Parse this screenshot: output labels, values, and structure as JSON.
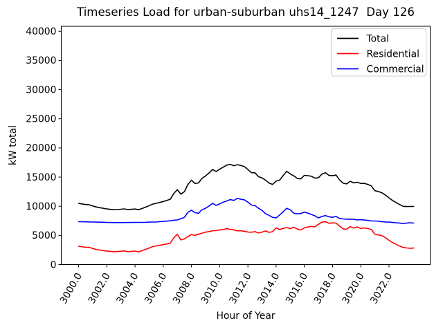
{
  "chart_data": {
    "type": "line",
    "title": "Timeseries Load for urban-suburban uhs14_1247  Day 126",
    "xlabel": "Hour of Year",
    "ylabel": "kW total",
    "x_start": 3000.0,
    "x_step": 0.25,
    "n_points": 96,
    "xlim": [
      2998.77,
      3024.92
    ],
    "ylim": [
      0,
      40860
    ],
    "grid": false,
    "line_width": 1.6,
    "x_ticks": {
      "values": [
        3000,
        3002,
        3004,
        3006,
        3008,
        3010,
        3012,
        3014,
        3016,
        3018,
        3020,
        3022
      ],
      "labels": [
        "3000.0",
        "3002.0",
        "3004.0",
        "3006.0",
        "3008.0",
        "3010.0",
        "3012.0",
        "3014.0",
        "3016.0",
        "3018.0",
        "3020.0",
        "3022.0"
      ],
      "rotation": 60
    },
    "y_ticks": {
      "values": [
        0,
        5000,
        10000,
        15000,
        20000,
        25000,
        30000,
        35000,
        40000
      ],
      "labels": [
        "0",
        "5000",
        "10000",
        "15000",
        "20000",
        "25000",
        "30000",
        "35000",
        "40000"
      ]
    },
    "legend": {
      "position": "upper right",
      "entries": [
        "Total",
        "Residential",
        "Commercial"
      ]
    },
    "series": [
      {
        "name": "Total",
        "color": "#000000",
        "values": [
          10500,
          10390,
          10290,
          10260,
          10050,
          9880,
          9750,
          9660,
          9540,
          9470,
          9410,
          9430,
          9490,
          9550,
          9420,
          9480,
          9530,
          9410,
          9620,
          9850,
          10110,
          10370,
          10500,
          10650,
          10820,
          10990,
          11210,
          12200,
          12840,
          12070,
          12500,
          13750,
          14470,
          13900,
          13990,
          14790,
          15210,
          15710,
          16300,
          15970,
          16350,
          16700,
          17050,
          17190,
          16950,
          17130,
          17000,
          16800,
          16280,
          15750,
          15740,
          15070,
          14860,
          14480,
          13970,
          13750,
          14300,
          14500,
          15250,
          16000,
          15550,
          15220,
          14780,
          14680,
          15300,
          15240,
          15150,
          14810,
          14900,
          15530,
          15750,
          15280,
          15250,
          15350,
          14500,
          13960,
          13830,
          14290,
          14010,
          14110,
          13900,
          13920,
          13750,
          13490,
          12670,
          12520,
          12300,
          11910,
          11430,
          11000,
          10640,
          10290,
          9990,
          9950,
          9960,
          9960
        ]
      },
      {
        "name": "Residential",
        "color": "#ff0000",
        "values": [
          3150,
          3050,
          2960,
          2950,
          2750,
          2600,
          2480,
          2400,
          2320,
          2260,
          2210,
          2230,
          2290,
          2340,
          2210,
          2260,
          2310,
          2180,
          2380,
          2600,
          2830,
          3080,
          3200,
          3300,
          3420,
          3540,
          3700,
          4600,
          5190,
          4220,
          4400,
          4800,
          5150,
          5000,
          5190,
          5390,
          5560,
          5660,
          5800,
          5820,
          5950,
          6000,
          6150,
          6040,
          5950,
          5780,
          5800,
          5700,
          5580,
          5550,
          5640,
          5420,
          5560,
          5760,
          5520,
          5650,
          6300,
          6000,
          6200,
          6350,
          6150,
          6420,
          6080,
          5930,
          6300,
          6440,
          6550,
          6460,
          6900,
          7280,
          7350,
          7080,
          7150,
          7100,
          6600,
          6130,
          6050,
          6500,
          6250,
          6450,
          6200,
          6280,
          6180,
          6000,
          5200,
          5080,
          4940,
          4600,
          4150,
          3780,
          3480,
          3180,
          2940,
          2850,
          2800,
          2840
        ]
      },
      {
        "name": "Commercial",
        "color": "#0000ff",
        "values": [
          7350,
          7340,
          7330,
          7310,
          7300,
          7280,
          7270,
          7260,
          7220,
          7210,
          7200,
          7200,
          7200,
          7210,
          7210,
          7220,
          7220,
          7230,
          7240,
          7250,
          7280,
          7290,
          7300,
          7350,
          7400,
          7450,
          7510,
          7600,
          7650,
          7850,
          8100,
          8950,
          9320,
          8900,
          8800,
          9400,
          9650,
          10050,
          10500,
          10150,
          10400,
          10700,
          10900,
          11150,
          11000,
          11350,
          11200,
          11100,
          10700,
          10200,
          10100,
          9650,
          9300,
          8720,
          8450,
          8100,
          8000,
          8500,
          9050,
          9650,
          9400,
          8800,
          8700,
          8750,
          9000,
          8800,
          8600,
          8350,
          8000,
          8250,
          8400,
          8200,
          8100,
          8250,
          7900,
          7830,
          7780,
          7790,
          7760,
          7660,
          7700,
          7640,
          7570,
          7490,
          7470,
          7440,
          7360,
          7310,
          7280,
          7220,
          7160,
          7110,
          7050,
          7100,
          7160,
          7120
        ]
      }
    ]
  },
  "colors": {
    "background": "#ffffff",
    "frame": "#000000",
    "tick": "#000000",
    "text": "#000000",
    "legend_border": "#cccccc",
    "legend_background": "#ffffff"
  }
}
